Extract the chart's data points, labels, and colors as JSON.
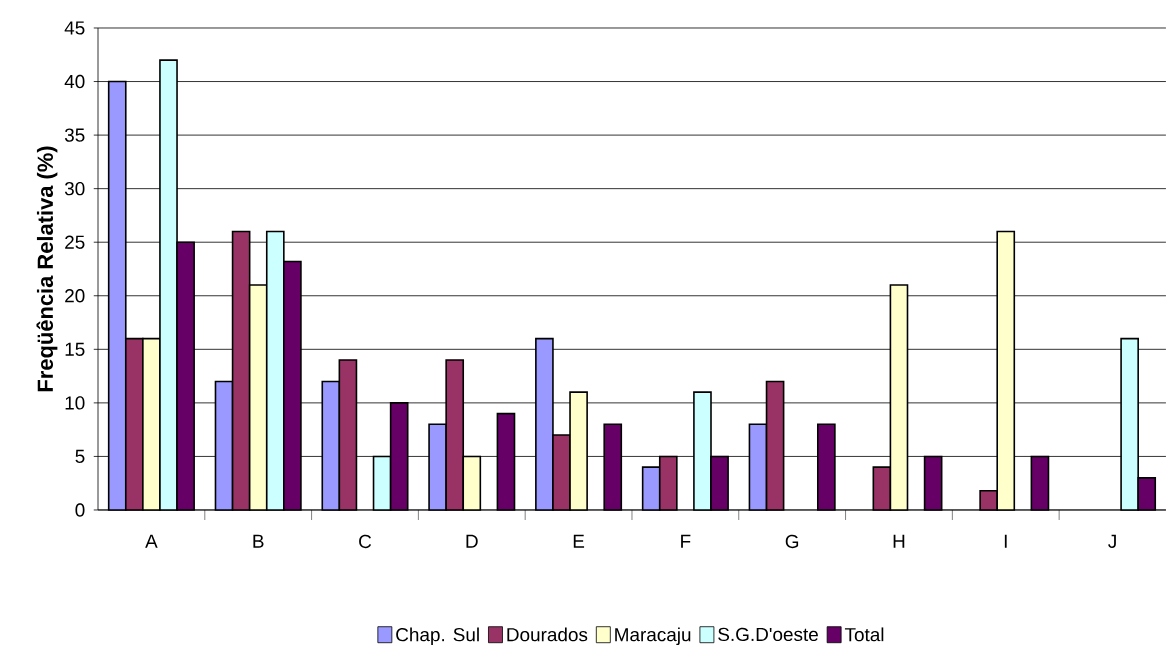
{
  "chart_data": {
    "type": "bar",
    "ylabel": "Freqüência Relativa (%)",
    "categories": [
      "A",
      "B",
      "C",
      "D",
      "E",
      "F",
      "G",
      "H",
      "I",
      "J"
    ],
    "series": [
      {
        "name": "Chap. Sul",
        "color": "#9999ff",
        "values": [
          40,
          12,
          12,
          8,
          16,
          4,
          8,
          null,
          null,
          null
        ]
      },
      {
        "name": "Dourados",
        "color": "#993366",
        "values": [
          16,
          26,
          14,
          14,
          7,
          5,
          12,
          4,
          1.8,
          null
        ]
      },
      {
        "name": "Maracaju",
        "color": "#ffffcc",
        "values": [
          16,
          21,
          null,
          5,
          11,
          null,
          null,
          21,
          26,
          null
        ]
      },
      {
        "name": "S.G.D'oeste",
        "color": "#ccffff",
        "values": [
          42,
          26,
          5,
          null,
          null,
          11,
          null,
          null,
          null,
          16
        ]
      },
      {
        "name": "Total",
        "color": "#660066",
        "values": [
          25,
          23.2,
          10,
          9,
          8,
          5,
          8,
          5,
          5,
          3
        ]
      }
    ],
    "ylim": [
      0,
      45
    ],
    "yticks": [
      0,
      5,
      10,
      15,
      20,
      25,
      30,
      35,
      40,
      45
    ],
    "grid": "y",
    "legend": "bottom"
  }
}
